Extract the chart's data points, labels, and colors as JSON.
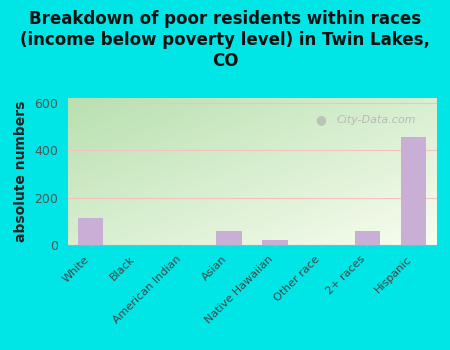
{
  "title": "Breakdown of poor residents within races\n(income below poverty level) in Twin Lakes,\nCO",
  "ylabel": "absolute numbers",
  "categories": [
    "White",
    "Black",
    "American Indian",
    "Asian",
    "Native Hawaiian",
    "Other race",
    "2+ races",
    "Hispanic"
  ],
  "values": [
    115,
    0,
    0,
    60,
    20,
    0,
    60,
    455
  ],
  "bar_color": "#c9aed6",
  "background_outer": "#00e5e5",
  "ylim": [
    0,
    620
  ],
  "yticks": [
    0,
    200,
    400,
    600
  ],
  "grid_color": "#f5c0c0",
  "watermark": "City-Data.com",
  "title_fontsize": 12,
  "ylabel_fontsize": 10,
  "grad_top_left": "#b8e0b0",
  "grad_bottom_right": "#f8fdf0"
}
